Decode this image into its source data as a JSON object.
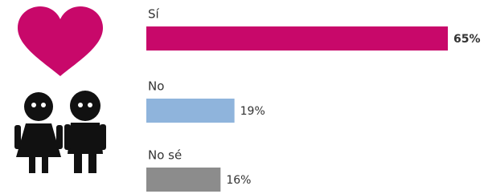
{
  "chart_data": {
    "type": "bar",
    "orientation": "horizontal",
    "categories": [
      "Sí",
      "No",
      "No sé"
    ],
    "values": [
      65,
      19,
      16
    ],
    "value_labels": [
      "65%",
      "19%",
      "16%"
    ],
    "colors": [
      "#c8086a",
      "#8fb4dc",
      "#8c8c8c"
    ]
  }
}
